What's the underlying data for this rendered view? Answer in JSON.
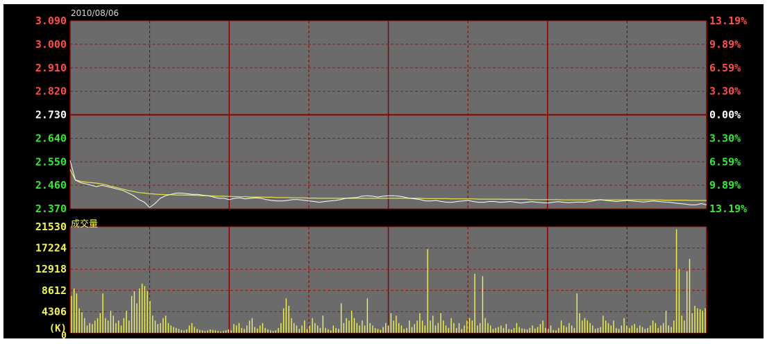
{
  "header": {
    "date": "2010/08/06"
  },
  "colors": {
    "background": "#000000",
    "panel": "#6b6b6b",
    "grid_major": "#8b0000",
    "grid_minor": "#a01010",
    "up": "#ff4c4c",
    "flat": "#ffffff",
    "down": "#33e833",
    "price_line": "#ffffff",
    "avg_line": "#e6e64a",
    "volume": "#f2f25a"
  },
  "chart_data": [
    {
      "type": "line",
      "title": "",
      "ylim": [
        2.37,
        3.09
      ],
      "left_ticks": [
        "3.090",
        "3.000",
        "2.910",
        "2.820",
        "2.730",
        "2.640",
        "2.550",
        "2.460",
        "2.370"
      ],
      "right_ticks": [
        "13.19%",
        "9.89%",
        "6.59%",
        "3.30%",
        "0.00%",
        "3.30%",
        "6.59%",
        "9.89%",
        "13.19%"
      ],
      "x": [
        0,
        2,
        4,
        6,
        8,
        10,
        12,
        14,
        16,
        18,
        20,
        22,
        24,
        26,
        28,
        30,
        32,
        34,
        36,
        38,
        40,
        42,
        44,
        46,
        48,
        50,
        52,
        54,
        56,
        58,
        60,
        62,
        64,
        66,
        68,
        70,
        72,
        74,
        76,
        78,
        80,
        82,
        84,
        86,
        88,
        90,
        92,
        94,
        96,
        98,
        100,
        102,
        104,
        106,
        108,
        110,
        112,
        114,
        116,
        118,
        120,
        122,
        124,
        126,
        128,
        130,
        132,
        134,
        136,
        138,
        140,
        142,
        144,
        146,
        148,
        150,
        152,
        154,
        156,
        158,
        160,
        162,
        164,
        166,
        168,
        170,
        172,
        174,
        176,
        178,
        180,
        182,
        184,
        186,
        188,
        190,
        192,
        194,
        196,
        198,
        200,
        202,
        204,
        206,
        208,
        210,
        212,
        214,
        216,
        218,
        220,
        222,
        224,
        226,
        228,
        230,
        232,
        234,
        236,
        238,
        240
      ],
      "series": [
        {
          "values": [
            2.555,
            2.48,
            2.47,
            2.465,
            2.46,
            2.455,
            2.46,
            2.455,
            2.45,
            2.445,
            2.44,
            2.43,
            2.42,
            2.405,
            2.395,
            2.375,
            2.39,
            2.41,
            2.42,
            2.425,
            2.43,
            2.43,
            2.428,
            2.425,
            2.425,
            2.422,
            2.42,
            2.415,
            2.41,
            2.41,
            2.405,
            2.41,
            2.412,
            2.408,
            2.41,
            2.412,
            2.41,
            2.405,
            2.402,
            2.4,
            2.4,
            2.402,
            2.405,
            2.405,
            2.403,
            2.4,
            2.398,
            2.395,
            2.398,
            2.4,
            2.402,
            2.405,
            2.41,
            2.412,
            2.413,
            2.418,
            2.42,
            2.418,
            2.415,
            2.418,
            2.42,
            2.42,
            2.418,
            2.415,
            2.41,
            2.408,
            2.405,
            2.4,
            2.4,
            2.402,
            2.398,
            2.395,
            2.395,
            2.398,
            2.4,
            2.402,
            2.398,
            2.395,
            2.395,
            2.398,
            2.398,
            2.395,
            2.396,
            2.398,
            2.395,
            2.392,
            2.395,
            2.397,
            2.395,
            2.393,
            2.392,
            2.395,
            2.397,
            2.395,
            2.393,
            2.395,
            2.396,
            2.395,
            2.398,
            2.402,
            2.405,
            2.402,
            2.4,
            2.398,
            2.4,
            2.402,
            2.4,
            2.398,
            2.396,
            2.398,
            2.4,
            2.398,
            2.396,
            2.395,
            2.392,
            2.39,
            2.388,
            2.385,
            2.385,
            2.39,
            2.385
          ]
        },
        {
          "values": [
            2.52,
            2.48,
            2.475,
            2.472,
            2.47,
            2.468,
            2.465,
            2.46,
            2.455,
            2.45,
            2.445,
            2.44,
            2.436,
            2.432,
            2.43,
            2.428,
            2.426,
            2.425,
            2.424,
            2.424,
            2.423,
            2.423,
            2.422,
            2.422,
            2.421,
            2.42,
            2.42,
            2.419,
            2.418,
            2.418,
            2.417,
            2.417,
            2.416,
            2.416,
            2.415,
            2.415,
            2.415,
            2.414,
            2.414,
            2.413,
            2.413,
            2.413,
            2.412,
            2.412,
            2.412,
            2.411,
            2.411,
            2.41,
            2.41,
            2.41,
            2.41,
            2.41,
            2.41,
            2.41,
            2.41,
            2.41,
            2.41,
            2.41,
            2.41,
            2.41,
            2.41,
            2.41,
            2.41,
            2.41,
            2.41,
            2.41,
            2.41,
            2.409,
            2.409,
            2.409,
            2.409,
            2.409,
            2.408,
            2.408,
            2.408,
            2.408,
            2.408,
            2.407,
            2.407,
            2.407,
            2.407,
            2.407,
            2.406,
            2.406,
            2.406,
            2.406,
            2.406,
            2.405,
            2.405,
            2.405,
            2.405,
            2.405,
            2.405,
            2.404,
            2.404,
            2.404,
            2.404,
            2.404,
            2.404,
            2.404,
            2.404,
            2.404,
            2.404,
            2.404,
            2.404,
            2.404,
            2.404,
            2.404,
            2.404,
            2.404,
            2.404,
            2.404,
            2.403,
            2.403,
            2.403,
            2.403,
            2.403,
            2.402,
            2.402,
            2.402,
            2.402
          ]
        }
      ]
    },
    {
      "type": "bar",
      "title": "成交量",
      "ylabel": "(K)",
      "ylim": [
        0,
        21530
      ],
      "tick_labels": [
        "21530",
        "17224",
        "12918",
        "8612",
        "4306",
        "0"
      ],
      "values": [
        7500,
        9000,
        8000,
        5000,
        4200,
        3000,
        1500,
        2000,
        1800,
        2500,
        3000,
        4000,
        8000,
        3000,
        2500,
        4500,
        3500,
        2000,
        2500,
        1500,
        3000,
        4500,
        2500,
        7500,
        8500,
        6000,
        9000,
        10000,
        9500,
        8500,
        6500,
        3500,
        2500,
        1800,
        2000,
        3000,
        3500,
        2000,
        1500,
        1200,
        1000,
        800,
        600,
        500,
        700,
        1500,
        2000,
        1200,
        800,
        600,
        500,
        400,
        500,
        700,
        600,
        500,
        400,
        300,
        400,
        500,
        700,
        500,
        1800,
        1500,
        2000,
        1000,
        800,
        1500,
        2500,
        3000,
        1200,
        900,
        1500,
        2000,
        1000,
        700,
        500,
        400,
        500,
        1000,
        2000,
        5000,
        7000,
        5500,
        3000,
        2000,
        1500,
        800,
        1500,
        2500,
        800,
        1500,
        3000,
        2000,
        1500,
        1000,
        3500,
        1000,
        700,
        500,
        1500,
        1000,
        800,
        6000,
        2000,
        3000,
        2500,
        4500,
        3000,
        2000,
        1500,
        2500,
        1500,
        7000,
        2000,
        1500,
        1000,
        800,
        600,
        1200,
        2000,
        1500,
        4000,
        2500,
        3500,
        2000,
        1500,
        800,
        1000,
        2500,
        1200,
        1800,
        2500,
        4000,
        2500,
        1500,
        17000,
        2500,
        3500,
        1500,
        2000,
        4000,
        2500,
        1500,
        1000,
        3000,
        2000,
        1000,
        2000,
        800,
        1500,
        2500,
        3000,
        2500,
        12000,
        1500,
        2000,
        11500,
        3000,
        2000,
        1500,
        800,
        1000,
        1200,
        1500,
        1000,
        1800,
        800,
        700,
        1000,
        2000,
        1200,
        900,
        800,
        700,
        1000,
        1500,
        900,
        1200,
        1800,
        2500,
        1000,
        800,
        1500,
        600,
        500,
        1000,
        2500,
        1500,
        1200,
        2000,
        1500,
        1000,
        8000,
        4000,
        2500,
        3000,
        2500,
        2000,
        1500,
        800,
        1000,
        1200,
        3500,
        2500,
        2000,
        1500,
        2500,
        1000,
        800,
        1500,
        3000,
        1500,
        1000,
        1500,
        1800,
        1000,
        1500,
        1200,
        800,
        1000,
        1500,
        2500,
        2000,
        1000,
        1500,
        2000,
        4500,
        1500,
        1200,
        2500,
        21000,
        13000,
        3500,
        2500,
        12500,
        15000,
        4000,
        5500,
        5000,
        4800,
        4500,
        5000
      ]
    }
  ]
}
